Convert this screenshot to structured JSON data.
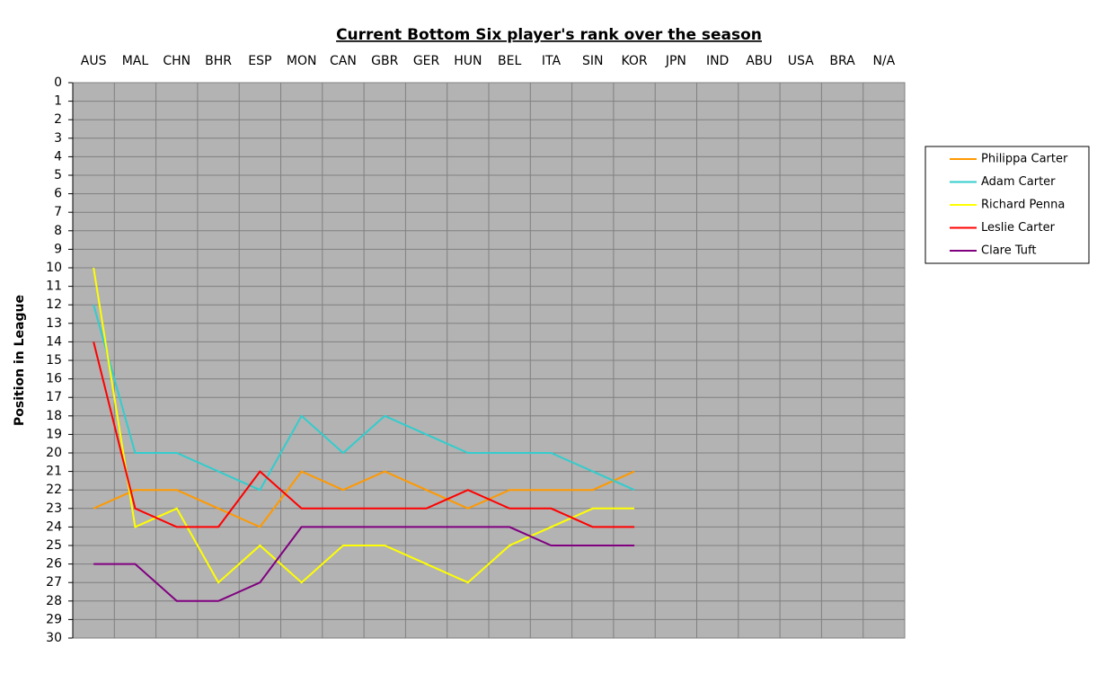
{
  "chart_data": {
    "type": "line",
    "title": "Current Bottom Six player's rank over the season",
    "y_label": "Position in League",
    "categories": [
      "AUS",
      "MAL",
      "CHN",
      "BHR",
      "ESP",
      "MON",
      "CAN",
      "GBR",
      "GER",
      "HUN",
      "BEL",
      "ITA",
      "SIN",
      "KOR",
      "JPN",
      "IND",
      "ABU",
      "USA",
      "BRA",
      "N/A"
    ],
    "series": [
      {
        "name": "Philippa Carter",
        "color": "#ff9900",
        "values": [
          23,
          22,
          22,
          23,
          24,
          21,
          22,
          21,
          22,
          23,
          22,
          22,
          22,
          21,
          null,
          null,
          null,
          null,
          null,
          null
        ]
      },
      {
        "name": "Adam Carter",
        "color": "#33cccc",
        "values": [
          12,
          20,
          20,
          21,
          22,
          18,
          20,
          18,
          19,
          20,
          20,
          20,
          21,
          22,
          null,
          null,
          null,
          null,
          null,
          null
        ]
      },
      {
        "name": "Richard Penna",
        "color": "#ffff00",
        "values": [
          10,
          24,
          23,
          27,
          25,
          27,
          25,
          25,
          26,
          27,
          25,
          24,
          23,
          23,
          null,
          null,
          null,
          null,
          null,
          null
        ]
      },
      {
        "name": "Leslie Carter",
        "color": "#ff0000",
        "values": [
          14,
          23,
          24,
          24,
          21,
          23,
          23,
          23,
          23,
          22,
          23,
          23,
          24,
          24,
          null,
          null,
          null,
          null,
          null,
          null
        ]
      },
      {
        "name": "Clare Tuft",
        "color": "#800080",
        "values": [
          26,
          26,
          28,
          28,
          27,
          24,
          24,
          24,
          24,
          24,
          24,
          25,
          25,
          25,
          null,
          null,
          null,
          null,
          null,
          null
        ]
      }
    ],
    "ylim": [
      0,
      30
    ],
    "y_inverted": true,
    "yticks": [
      0,
      1,
      2,
      3,
      4,
      5,
      6,
      7,
      8,
      9,
      10,
      11,
      12,
      13,
      14,
      15,
      16,
      17,
      18,
      19,
      20,
      21,
      22,
      23,
      24,
      25,
      26,
      27,
      28,
      29,
      30
    ],
    "grid": true,
    "legend": "right"
  }
}
